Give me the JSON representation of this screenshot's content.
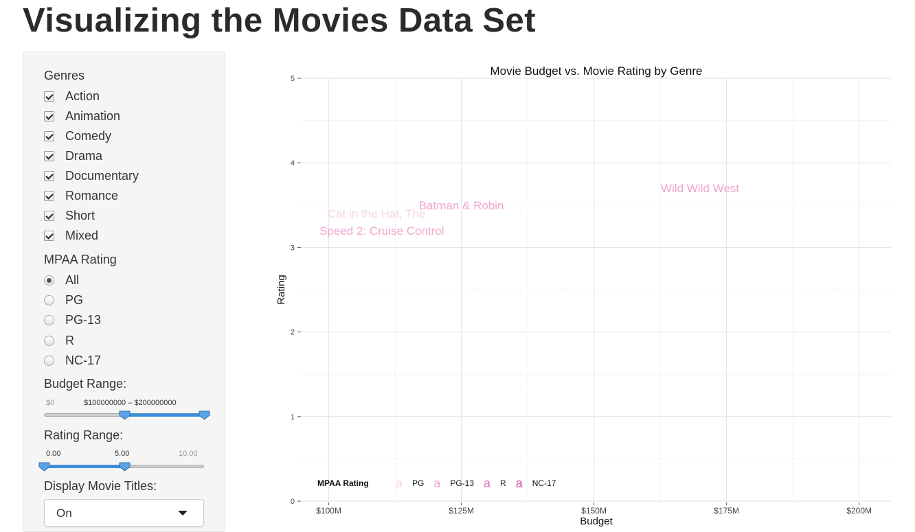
{
  "page": {
    "title": "Visualizing the Movies Data Set"
  },
  "sidebar": {
    "genres_label": "Genres",
    "genres": [
      "Action",
      "Animation",
      "Comedy",
      "Drama",
      "Documentary",
      "Romance",
      "Short",
      "Mixed"
    ],
    "mpaa_label": "MPAA Rating",
    "mpaa_options": [
      "All",
      "PG",
      "PG-13",
      "R",
      "NC-17"
    ],
    "mpaa_selected": "All",
    "budget": {
      "label": "Budget Range:",
      "min_label": "$0",
      "value_label": "$100000000 – $200000000",
      "min": 0,
      "max": 200000000,
      "low": 100000000,
      "high": 200000000
    },
    "rating": {
      "label": "Rating Range:",
      "min_label": "0.00",
      "value_label": "5.00",
      "max_label": "10.00",
      "min": 0,
      "max": 10,
      "low": 0,
      "high": 5
    },
    "titles": {
      "label": "Display Movie Titles:",
      "value": "On"
    }
  },
  "chart_data": {
    "type": "scatter",
    "title": "Movie Budget vs. Movie Rating by Genre",
    "xlabel": "Budget",
    "ylabel": "Rating",
    "xlim": [
      95000000,
      206000000
    ],
    "ylim": [
      0,
      5
    ],
    "x_ticks": [
      100000000,
      125000000,
      150000000,
      175000000,
      200000000
    ],
    "x_tick_labels": [
      "$100M",
      "$125M",
      "$150M",
      "$175M",
      "$200M"
    ],
    "y_ticks": [
      0,
      1,
      2,
      3,
      4,
      5
    ],
    "y_tick_labels": [
      "0",
      "1",
      "2",
      "3",
      "4",
      "5"
    ],
    "grid": true,
    "points": [
      {
        "label": "Batman & Robin",
        "x": 125000000,
        "y": 3.5,
        "mpaa": "PG-13"
      },
      {
        "label": "Cat in the Hat, The",
        "x": 109000000,
        "y": 3.4,
        "mpaa": "PG"
      },
      {
        "label": "Speed 2: Cruise Control",
        "x": 110000000,
        "y": 3.2,
        "mpaa": "PG-13"
      },
      {
        "label": "Wild Wild West",
        "x": 170000000,
        "y": 3.7,
        "mpaa": "PG-13"
      }
    ],
    "legend": {
      "title": "MPAA Rating",
      "placement": "bottom-left",
      "entries": [
        {
          "name": "PG",
          "color": "#f7d3e6"
        },
        {
          "name": "PG-13",
          "color": "#f0a6cf"
        },
        {
          "name": "R",
          "color": "#e179b5"
        },
        {
          "name": "NC-17",
          "color": "#cf4f9b"
        }
      ],
      "key_glyph": "a"
    }
  }
}
